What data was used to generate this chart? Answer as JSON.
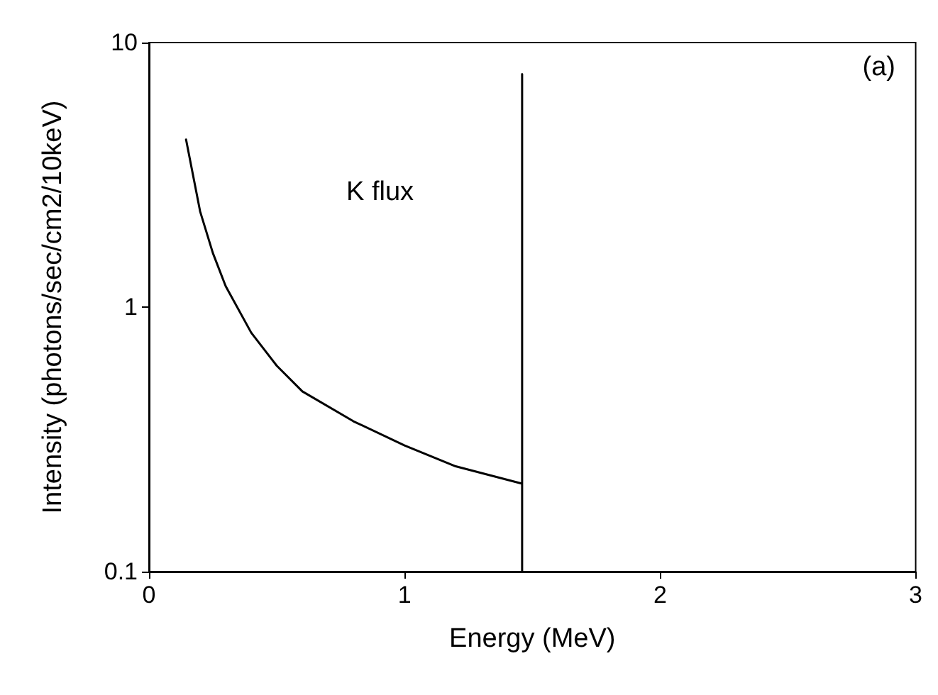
{
  "chart_data": {
    "type": "line",
    "xlabel": "Energy (MeV)",
    "ylabel": "Intensity (photons/sec/cm2/10keV)",
    "x": [
      0.145,
      0.2,
      0.25,
      0.3,
      0.4,
      0.5,
      0.6,
      0.8,
      1.0,
      1.2,
      1.46,
      1.46,
      1.46
    ],
    "series": [
      {
        "color": "#000000",
        "values": [
          4.3,
          2.3,
          1.6,
          1.2,
          0.8,
          0.6,
          0.48,
          0.37,
          0.3,
          0.25,
          0.215,
          7.6,
          0.1
        ]
      }
    ],
    "xlim": [
      0,
      3
    ],
    "xticks": [
      0,
      1,
      2,
      3
    ],
    "ylim": [
      0.1,
      10
    ],
    "yticks": [
      0.1,
      1,
      10
    ],
    "log": "y",
    "grid": false,
    "marker": "none",
    "line_style": "solid",
    "annotations": [
      "K flux",
      "(a)"
    ]
  }
}
